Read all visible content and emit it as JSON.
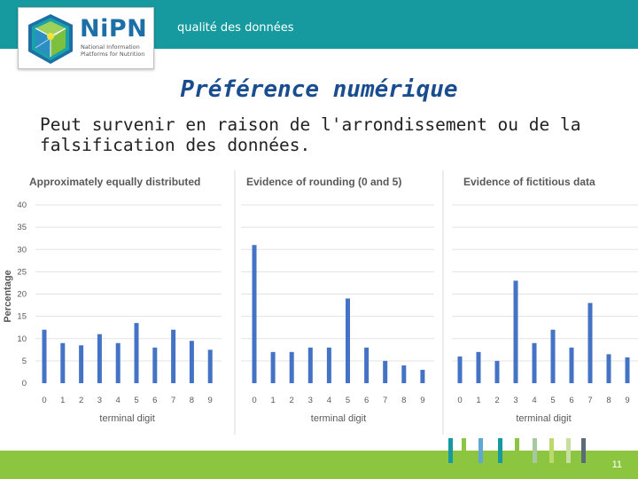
{
  "header": {
    "label": "qualité des données"
  },
  "logo": {
    "name": "NiPN",
    "subtitle_lines": [
      "National Information",
      "Platforms for Nutrition"
    ]
  },
  "slide": {
    "title": "Préférence numérique",
    "subtitle": "Peut survenir en raison de l'arrondissement ou de la falsification des données.",
    "page_number": "11"
  },
  "colors": {
    "header_bar": "#169aa0",
    "footer_bar": "#8cc640",
    "bar": "#4472c4",
    "title": "#1a4d8f"
  },
  "chart_data": [
    {
      "type": "bar",
      "title": "Approximately equally distributed",
      "categories": [
        "0",
        "1",
        "2",
        "3",
        "4",
        "5",
        "6",
        "7",
        "8",
        "9"
      ],
      "values": [
        12,
        9,
        8.5,
        11,
        9,
        13.5,
        8,
        12,
        9.5,
        7.5
      ],
      "xlabel": "terminal digit",
      "ylabel": "Percentage",
      "ylim": [
        0,
        40
      ],
      "yticks": [
        "0",
        "5",
        "10",
        "15",
        "20",
        "25",
        "30",
        "35",
        "40"
      ],
      "grid": true
    },
    {
      "type": "bar",
      "title": "Evidence of rounding (0 and 5)",
      "categories": [
        "0",
        "1",
        "2",
        "3",
        "4",
        "5",
        "6",
        "7",
        "8",
        "9"
      ],
      "values": [
        31,
        7,
        7,
        8,
        8,
        19,
        8,
        5,
        4,
        3
      ],
      "xlabel": "terminal digit",
      "ylim": [
        0,
        40
      ],
      "grid": true
    },
    {
      "type": "bar",
      "title": "Evidence of fictitious data",
      "categories": [
        "0",
        "1",
        "2",
        "3",
        "4",
        "5",
        "6",
        "7",
        "8",
        "9"
      ],
      "values": [
        6,
        7,
        5,
        23,
        9,
        12,
        8,
        18,
        6.5,
        5.8
      ],
      "xlabel": "terminal digit",
      "ylim": [
        0,
        40
      ],
      "grid": true
    }
  ]
}
